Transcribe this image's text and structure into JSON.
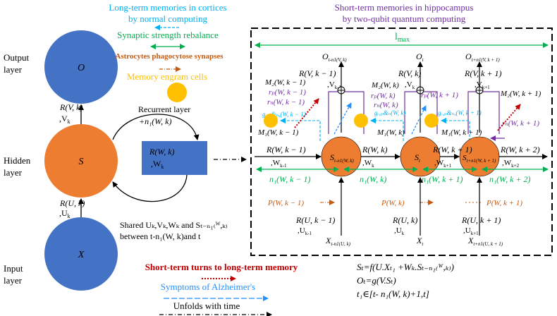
{
  "layer_labels": {
    "output": [
      "Output",
      "layer"
    ],
    "hidden": [
      "Hidden",
      "layer"
    ],
    "input": [
      "Input",
      "layer"
    ]
  },
  "nodes": {
    "output": "O",
    "hidden": "S",
    "input": "X"
  },
  "left_edges": {
    "rv": "R(V, k)",
    "vk": ",V",
    "vk_sub": "k",
    "ru": "R(U, k)",
    "uk": ",U",
    "uk_sub": "k"
  },
  "recurrent": {
    "title": "Recurrent layer",
    "n1": "+n₁(W, k)",
    "box_line1": "R(W, k)",
    "box_line2": ",W",
    "box_sub": "k"
  },
  "shared": {
    "line1": "Shared Uₖ,Vₖ,Wₖ and Sₜ₋ₙ₁₍ᵂ,ₖ₎",
    "line2": "between t-n₁(W, k)and t"
  },
  "legend_top": {
    "longterm_line1": "Long-term memories in cortices",
    "longterm_line2": "by normal computing",
    "synaptic": "Synaptic strength rebalance",
    "astrocytes": "Astrocytes phagocytose synapses",
    "engram": "Memory engram cells"
  },
  "short_term": {
    "line1": "Short-term memories in hippocampus",
    "line2": "by two-qubit quantum computing"
  },
  "lmax": "l",
  "lmax_sub": "max",
  "outputs": [
    "O",
    "O",
    "O"
  ],
  "output_subs": [
    "t-n1(V, k)",
    "t",
    "t+n1(V, k + 1)"
  ],
  "rv_labels": [
    "R(V, k − 1)",
    "R(V, k)",
    "R(V, k + 1)"
  ],
  "v_subs": [
    "k-1",
    "k",
    "k+1"
  ],
  "m2_labels": [
    "M₂(W, k − 1)",
    "M₂(W, k)",
    "M₂(W, k + 1)"
  ],
  "m1_labels": [
    "M₁(W, k − 1)",
    "M₁(W, k)",
    "M₁(W, k + 1)"
  ],
  "rp_labels": [
    "rₚ(W, k − 1)",
    "rₚ(W, k)",
    "rₚ(W, k + 1)"
  ],
  "rn_labels": [
    "rₙ(W, k − 1)",
    "rₙ(W, k)",
    "rₙ(W, k + 1)"
  ],
  "g_labels": [
    "gᵣ,ₚ&ₙ,(W, k − 1)",
    "gᵣ,ₚ&ₙ(W, k)",
    "gᵣ,ₚ&ₙ,(W, k + 1)"
  ],
  "states": [
    "S",
    "S",
    "S"
  ],
  "state_subs": [
    "t-n1(W, k)",
    "t",
    "t+n1(W, k + 1)"
  ],
  "rw_labels": [
    "R(W, k − 1)",
    "R(W, k)",
    "R(W, k + 1)",
    "R(W, k + 2)"
  ],
  "w_subs": [
    "k-1",
    "k",
    "k+1",
    "k+2"
  ],
  "n1_labels": [
    "n₁(W, k − 1)",
    "n₁(W, k)",
    "n₁(W, k + 1)",
    "n₁(W, k + 2)"
  ],
  "p_labels": [
    "P(W, k − 1)",
    "P(W, k)",
    "P(W, k + 1)"
  ],
  "ru_labels": [
    "R(U, k − 1)",
    "R(U, k)",
    "R(U, k + 1)"
  ],
  "u_subs": [
    "k-1",
    "k",
    "k+1"
  ],
  "inputs": [
    "X",
    "X",
    "X"
  ],
  "input_subs": [
    "t-n1(U, k)",
    "t",
    "t+n1(U, k + 1)"
  ],
  "equations": {
    "line1": "Sₜ=f(U.Xₜ₁ +Wₖ.Sₜ₋ₙ₁₍ᵂ,ₖ₎)",
    "line2": "Oₜ=g(V.Sₜ)",
    "line3": "t₁∈[t- n₁(W, k)+1,t]"
  },
  "legend_bottom": {
    "shortlong": "Short-term turns to long-term memory",
    "alz": "Symptoms of Alzheimer's",
    "unfolds": "Unfolds with time"
  },
  "colors": {
    "blue": "#4472C4",
    "orange": "#ED7D31",
    "yellow": "#FFC000",
    "green": "#00B050",
    "purple": "#7030A0",
    "red": "#C00000",
    "cyan": "#00B0F0",
    "brown": "#C55A11",
    "lightblue": "#1E90FF"
  }
}
